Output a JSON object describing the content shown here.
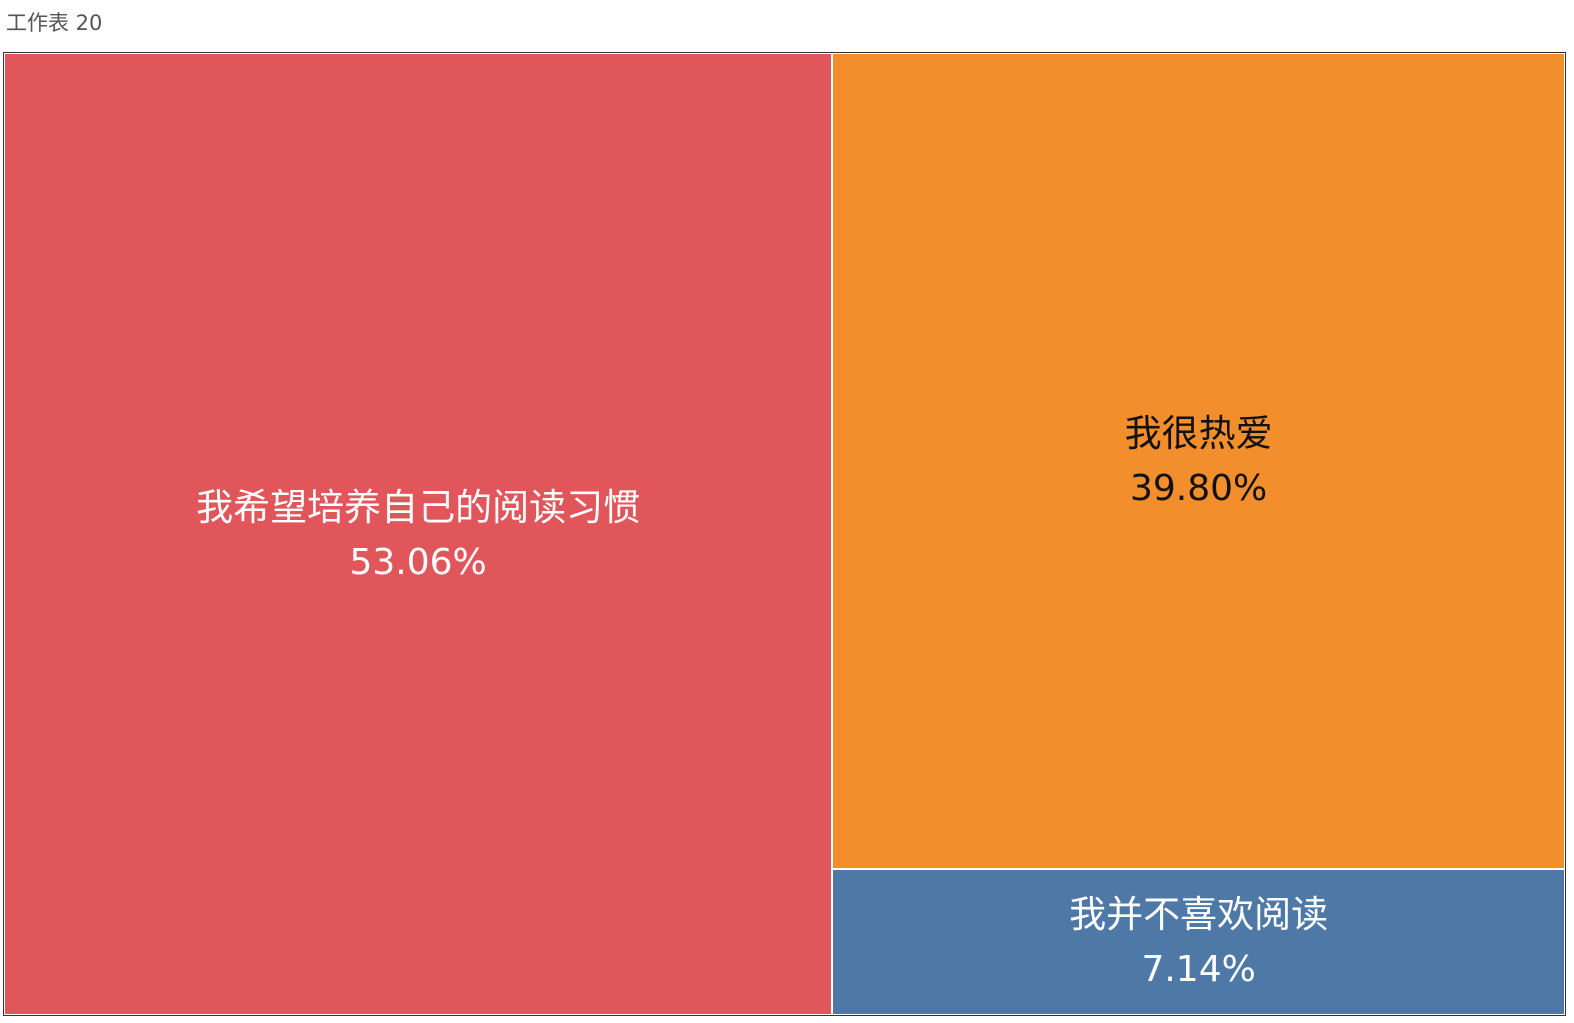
{
  "window": {
    "title": "工作表 20"
  },
  "chart_data": {
    "type": "treemap",
    "title": "",
    "categories": [
      "我希望培养自己的阅读习惯",
      "我很热爱",
      "我并不喜欢阅读"
    ],
    "values": [
      53.06,
      39.8,
      7.14
    ],
    "value_labels": [
      "53.06%",
      "39.80%",
      "7.14%"
    ],
    "colors": [
      "#e0565b",
      "#f28e2b",
      "#4e79a7"
    ],
    "label_colors": [
      "#ffffff",
      "#111111",
      "#ffffff"
    ],
    "unit": "%"
  }
}
